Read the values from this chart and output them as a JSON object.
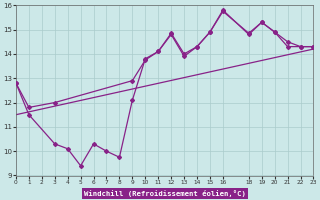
{
  "xlabel": "Windchill (Refroidissement éolien,°C)",
  "xlim": [
    0,
    23
  ],
  "ylim": [
    9,
    16
  ],
  "yticks": [
    9,
    10,
    11,
    12,
    13,
    14,
    15,
    16
  ],
  "xticks": [
    0,
    1,
    2,
    3,
    4,
    5,
    6,
    7,
    8,
    9,
    10,
    11,
    12,
    13,
    14,
    15,
    16,
    18,
    19,
    20,
    21,
    22,
    23
  ],
  "background_color": "#cce8e8",
  "grid_color": "#aacccc",
  "line_color": "#882288",
  "series1_x": [
    0,
    1,
    3,
    4,
    5,
    6,
    7,
    8,
    9,
    10,
    11,
    12,
    13,
    14,
    15,
    16,
    18,
    19,
    20,
    21,
    22,
    23
  ],
  "series1_y": [
    12.8,
    11.5,
    10.3,
    10.1,
    9.4,
    10.3,
    10.0,
    9.75,
    12.1,
    13.8,
    14.1,
    14.8,
    13.9,
    14.3,
    14.9,
    15.8,
    14.8,
    15.3,
    14.9,
    14.3,
    14.3,
    14.3
  ],
  "series2_x": [
    0,
    1,
    3,
    9,
    10,
    11,
    12,
    13,
    14,
    15,
    16,
    18,
    19,
    20,
    21,
    22,
    23
  ],
  "series2_y": [
    12.8,
    11.8,
    12.0,
    12.9,
    13.75,
    14.1,
    14.85,
    14.0,
    14.3,
    14.9,
    15.75,
    14.85,
    15.3,
    14.9,
    14.5,
    14.3,
    14.3
  ],
  "series3_x": [
    0,
    23
  ],
  "series3_y": [
    11.5,
    14.2
  ]
}
